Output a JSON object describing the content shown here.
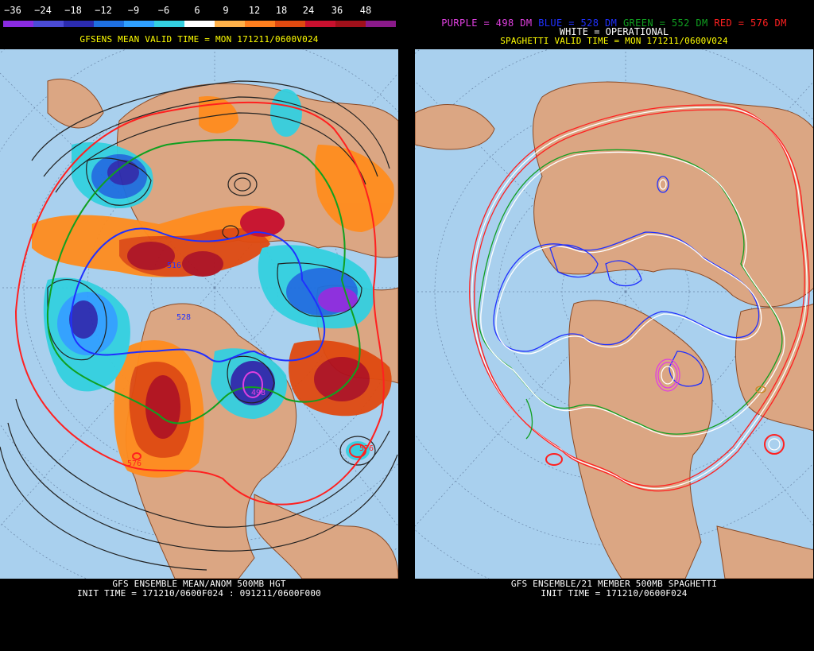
{
  "left": {
    "scale_labels": [
      "−36",
      "−24",
      "−18",
      "−12",
      "−9",
      "−6",
      "6",
      "9",
      "12",
      "18",
      "24",
      "36",
      "48"
    ],
    "scale_colors": [
      "#8a2be2",
      "#4b4bd6",
      "#2b2bb0",
      "#1e6fe0",
      "#2fa0ff",
      "#34d0e0",
      "#ffffff",
      "#ffb14a",
      "#ff7f1e",
      "#e04a10",
      "#c8102e",
      "#a0101a",
      "#8a1a8a"
    ],
    "valid_line": "GFSENS MEAN VALID TIME = MON 171211/0600V024",
    "bottom_line1": "GFS ENSEMBLE MEAN/ANOM 500MB HGT",
    "bottom_line2": "INIT TIME = 171210/0600F024 : 091211/0600F000",
    "contour_labels": [
      "516",
      "528",
      "498",
      "576",
      "576"
    ]
  },
  "right": {
    "legend": [
      {
        "text": "PURPLE = 498 DM",
        "color": "#e040e0"
      },
      {
        "text": "BLUE = 528 DM",
        "color": "#2030ff"
      },
      {
        "text": "GREEN = 552 DM",
        "color": "#10a020"
      },
      {
        "text": "RED = 576 DM",
        "color": "#ff2020"
      }
    ],
    "operational": "WHITE = OPERATIONAL",
    "valid_line": "SPAGHETTI VALID TIME = MON 171211/0600V024",
    "bottom_line1": "GFS ENSEMBLE/21 MEMBER 500MB SPAGHETTI",
    "bottom_line2": "INIT TIME = 171210/0600F024"
  }
}
